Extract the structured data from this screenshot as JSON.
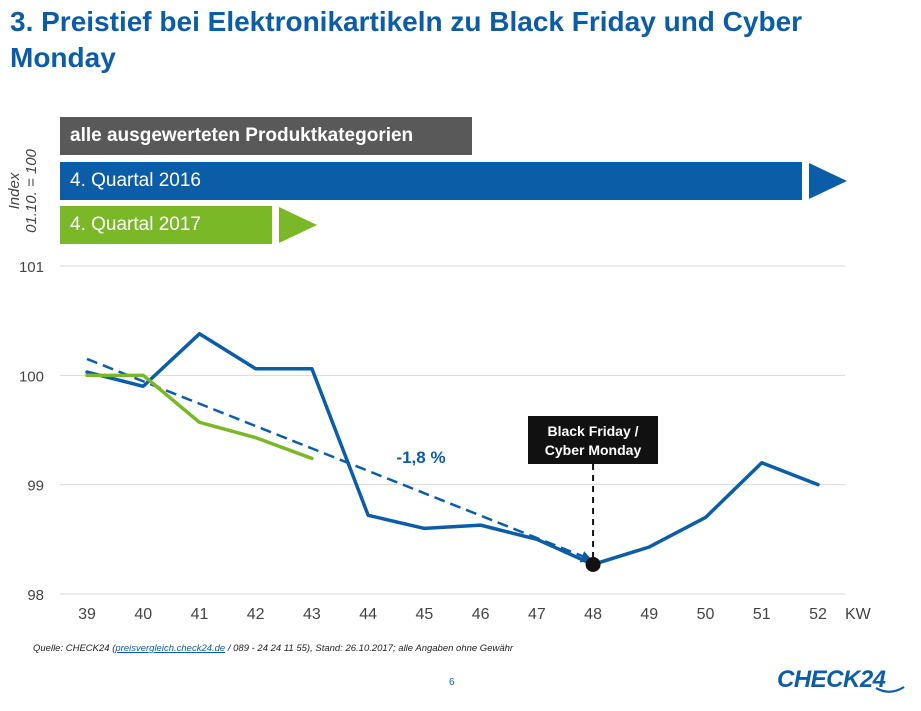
{
  "title": "3. Preistief bei Elektronikartikeln zu Black Friday und Cyber Monday",
  "ylabel_line1": "Index",
  "ylabel_line2": "01.10. = 100",
  "banners": {
    "all": "alle ausgewerteten Produktkategorien",
    "q2016": "4. Quartal 2016",
    "q2017": "4. Quartal 2017"
  },
  "colors": {
    "blue": "#0c5da8",
    "green": "#7ab828",
    "gray": "#595959"
  },
  "source": {
    "prefix": "Quelle: CHECK24 (",
    "link": "preisvergleich.check24.de",
    "suffix": " / 089 - 24 24 11 55), Stand: 26.10.2017; alle Angaben ohne Gewähr"
  },
  "page_number": "6",
  "logo": "CHECK24",
  "chart_data": {
    "type": "line",
    "x": [
      39,
      40,
      41,
      42,
      43,
      44,
      45,
      46,
      47,
      48,
      49,
      50,
      51,
      52
    ],
    "xlabel": "KW",
    "ylabel": "Index 01.10. = 100",
    "ylim": [
      98,
      101
    ],
    "yticks": [
      98,
      99,
      100,
      101
    ],
    "grid": true,
    "series": [
      {
        "name": "4. Quartal 2016",
        "color": "#0c5da8",
        "x": [
          39,
          40,
          41,
          42,
          43,
          44,
          45,
          46,
          47,
          48,
          49,
          50,
          51,
          52
        ],
        "values": [
          100.03,
          99.9,
          100.38,
          100.06,
          100.06,
          98.72,
          98.6,
          98.63,
          98.5,
          98.27,
          98.43,
          98.7,
          99.2,
          99.0
        ]
      },
      {
        "name": "4. Quartal 2017",
        "color": "#7ab828",
        "x": [
          39,
          40,
          41,
          42,
          43
        ],
        "values": [
          100.0,
          100.0,
          99.57,
          99.43,
          99.24
        ]
      }
    ],
    "trend": {
      "x": [
        39,
        48
      ],
      "values": [
        100.15,
        98.3
      ],
      "label": "-1,8 %"
    },
    "annotation": {
      "x": 48,
      "y": 98.27,
      "text_line1": "Black Friday /",
      "text_line2": "Cyber Monday"
    }
  }
}
